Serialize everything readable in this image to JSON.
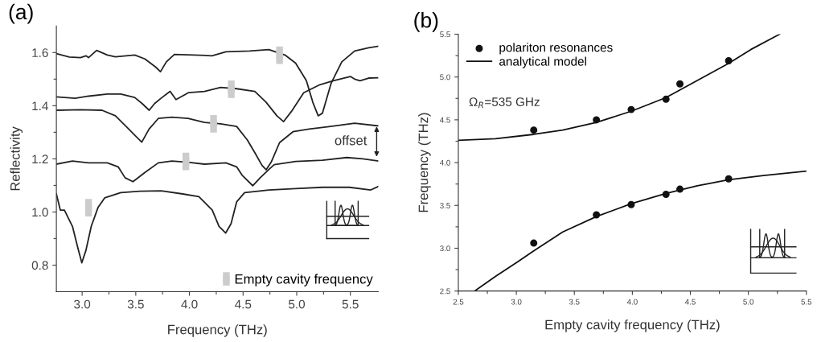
{
  "chart_data": [
    {
      "type": "line",
      "title": "(a)",
      "xlabel": "Frequency (THz)",
      "ylabel": "Reflectivity",
      "xlim": [
        2.76,
        5.76
      ],
      "ylim": [
        0.7,
        1.7
      ],
      "xticks": [
        {
          "value": 3.0,
          "label": "3.0"
        },
        {
          "value": 3.25,
          "label": null
        },
        {
          "value": 3.5,
          "label": "3.5"
        },
        {
          "value": 3.75,
          "label": null
        },
        {
          "value": 4.0,
          "label": "4.0"
        },
        {
          "value": 4.25,
          "label": null
        },
        {
          "value": 4.5,
          "label": "4.5"
        },
        {
          "value": 4.75,
          "label": null
        },
        {
          "value": 5.0,
          "label": "5.0"
        },
        {
          "value": 5.25,
          "label": null
        },
        {
          "value": 5.5,
          "label": "5.5"
        }
      ],
      "yticks": [
        {
          "value": 0.8,
          "label": "0.8"
        },
        {
          "value": 0.9,
          "label": null
        },
        {
          "value": 1.0,
          "label": "1.0"
        },
        {
          "value": 1.1,
          "label": null
        },
        {
          "value": 1.2,
          "label": "1.2"
        },
        {
          "value": 1.3,
          "label": null
        },
        {
          "value": 1.4,
          "label": "1.4"
        },
        {
          "value": 1.5,
          "label": null
        },
        {
          "value": 1.6,
          "label": "1.6"
        }
      ],
      "grid": false,
      "legend": "bottom right",
      "line_style": "solid",
      "annotations": [
        "offset"
      ],
      "series": [
        {
          "color": "#222222",
          "x": [
            2.76,
            2.88,
            2.985,
            3.035,
            3.06,
            3.135,
            3.235,
            3.31,
            3.49,
            3.585,
            3.687,
            3.73,
            3.785,
            3.86,
            4.04,
            4.21,
            4.34,
            4.56,
            4.74,
            4.89,
            4.99,
            5.09,
            5.15,
            5.2,
            5.24,
            5.32,
            5.42,
            5.54,
            5.67,
            5.76
          ],
          "values": [
            1.596,
            1.583,
            1.581,
            1.588,
            1.581,
            1.608,
            1.591,
            1.584,
            1.591,
            1.576,
            1.545,
            1.528,
            1.565,
            1.593,
            1.591,
            1.588,
            1.603,
            1.606,
            1.611,
            1.591,
            1.56,
            1.494,
            1.413,
            1.362,
            1.372,
            1.484,
            1.565,
            1.606,
            1.618,
            1.624
          ]
        },
        {
          "color": "#222222",
          "x": [
            2.76,
            2.935,
            3.06,
            3.235,
            3.36,
            3.49,
            3.56,
            3.625,
            3.675,
            3.735,
            3.82,
            3.875,
            3.99,
            4.14,
            4.29,
            4.44,
            4.61,
            4.715,
            4.815,
            4.877,
            4.95,
            5.065,
            5.215,
            5.34,
            5.5,
            5.54,
            5.59,
            5.67,
            5.76
          ],
          "values": [
            1.433,
            1.428,
            1.436,
            1.444,
            1.444,
            1.431,
            1.408,
            1.383,
            1.408,
            1.428,
            1.454,
            1.423,
            1.449,
            1.454,
            1.469,
            1.464,
            1.454,
            1.413,
            1.362,
            1.34,
            1.378,
            1.449,
            1.479,
            1.494,
            1.51,
            1.5,
            1.494,
            1.504,
            1.505
          ]
        },
        {
          "color": "#222222",
          "x": [
            2.76,
            2.985,
            3.185,
            3.31,
            3.41,
            3.51,
            3.556,
            3.624,
            3.71,
            3.837,
            3.987,
            4.14,
            4.29,
            4.44,
            4.54,
            4.614,
            4.677,
            4.715,
            4.765,
            4.84,
            4.965,
            5.115,
            5.315,
            5.54,
            5.76
          ],
          "values": [
            1.383,
            1.385,
            1.383,
            1.362,
            1.322,
            1.281,
            1.263,
            1.312,
            1.352,
            1.357,
            1.352,
            1.337,
            1.332,
            1.322,
            1.271,
            1.22,
            1.175,
            1.159,
            1.19,
            1.261,
            1.302,
            1.312,
            1.322,
            1.334,
            1.324
          ]
        },
        {
          "color": "#222222",
          "x": [
            2.76,
            2.91,
            3.06,
            3.235,
            3.336,
            3.4,
            3.474,
            3.586,
            3.71,
            3.837,
            3.987,
            4.14,
            4.34,
            4.44,
            4.49,
            4.59,
            4.66,
            4.74,
            4.79,
            4.99,
            5.24,
            5.466,
            5.616,
            5.76
          ],
          "values": [
            1.18,
            1.192,
            1.185,
            1.185,
            1.17,
            1.129,
            1.114,
            1.149,
            1.185,
            1.192,
            1.187,
            1.18,
            1.185,
            1.17,
            1.139,
            1.099,
            1.129,
            1.16,
            1.178,
            1.19,
            1.195,
            1.205,
            1.2,
            1.192
          ]
        },
        {
          "color": "#222222",
          "x": [
            2.76,
            2.797,
            2.835,
            2.91,
            2.96,
            2.997,
            3.035,
            3.085,
            3.148,
            3.21,
            3.36,
            3.536,
            3.737,
            3.937,
            4.088,
            4.213,
            4.276,
            4.338,
            4.388,
            4.44,
            4.514,
            4.74,
            4.99,
            5.24,
            5.49,
            5.69,
            5.76
          ],
          "values": [
            1.068,
            1.007,
            1.007,
            0.946,
            0.865,
            0.809,
            0.855,
            0.946,
            1.017,
            1.053,
            1.073,
            1.078,
            1.08,
            1.068,
            1.058,
            1.007,
            0.946,
            0.921,
            0.956,
            1.038,
            1.073,
            1.083,
            1.088,
            1.093,
            1.093,
            1.083,
            1.096
          ]
        },
        {
          "type": "scatter",
          "name": "Empty cavity frequency",
          "color": "#cccccc",
          "marker": "square",
          "x": [
            4.84,
            4.39,
            4.225,
            3.967,
            3.06
          ],
          "values": [
            1.59,
            1.462,
            1.332,
            1.19,
            1.016
          ],
          "errors": [
            0.033,
            0.033,
            0.033,
            0.033,
            0.033
          ]
        }
      ]
    },
    {
      "type": "scatter",
      "title": "(b)",
      "xlabel": "Empty cavity frequency (THz)",
      "ylabel": "Frequency (THz)",
      "xlim": [
        2.5,
        5.5
      ],
      "ylim": [
        2.5,
        5.5
      ],
      "xticks": [
        {
          "value": 2.5,
          "label": "2.5"
        },
        {
          "value": 2.75,
          "label": null
        },
        {
          "value": 3.0,
          "label": "3.0"
        },
        {
          "value": 3.25,
          "label": null
        },
        {
          "value": 3.5,
          "label": "3.5"
        },
        {
          "value": 3.75,
          "label": null
        },
        {
          "value": 4.0,
          "label": "4.0"
        },
        {
          "value": 4.25,
          "label": null
        },
        {
          "value": 4.5,
          "label": "4.5"
        },
        {
          "value": 4.75,
          "label": null
        },
        {
          "value": 5.0,
          "label": "5.0"
        },
        {
          "value": 5.25,
          "label": null
        },
        {
          "value": 5.5,
          "label": "5.5"
        }
      ],
      "yticks": [
        {
          "value": 2.5,
          "label": "2.5"
        },
        {
          "value": 2.75,
          "label": null
        },
        {
          "value": 3.0,
          "label": "3.0"
        },
        {
          "value": 3.25,
          "label": null
        },
        {
          "value": 3.5,
          "label": "3.5"
        },
        {
          "value": 3.75,
          "label": null
        },
        {
          "value": 4.0,
          "label": "4.0"
        },
        {
          "value": 4.25,
          "label": null
        },
        {
          "value": 4.5,
          "label": "4.5"
        },
        {
          "value": 4.75,
          "label": null
        },
        {
          "value": 5.0,
          "label": "5.0"
        },
        {
          "value": 5.25,
          "label": null
        },
        {
          "value": 5.5,
          "label": "5.5"
        }
      ],
      "grid": false,
      "legend": "top left",
      "marker": "circle",
      "line_style": "solid",
      "annotations": [
        "Ω$_{R}$=535 GHz"
      ],
      "series": [
        {
          "name": "polariton resonances",
          "color": "#111111",
          "x": [
            3.15,
            3.69,
            3.99,
            4.29,
            4.41,
            4.83,
            3.15,
            3.69,
            3.99,
            4.29,
            4.41,
            4.83
          ],
          "values": [
            4.38,
            4.5,
            4.62,
            4.74,
            4.92,
            5.19,
            3.06,
            3.39,
            3.51,
            3.63,
            3.69,
            3.81
          ]
        },
        {
          "type": "line",
          "name": "analytical model",
          "color": "#111111",
          "marker": "none",
          "x": [
            2.5,
            2.82,
            3.15,
            3.4,
            3.69,
            3.99,
            4.29,
            4.56,
            4.83,
            5.02,
            5.27
          ],
          "values": [
            4.26,
            4.28,
            4.33,
            4.38,
            4.47,
            4.6,
            4.76,
            4.96,
            5.16,
            5.32,
            5.5
          ]
        },
        {
          "type": "line",
          "color": "#111111",
          "marker": "none",
          "x": [
            2.64,
            2.82,
            3.01,
            3.15,
            3.4,
            3.69,
            3.99,
            4.29,
            4.56,
            4.83,
            5.13,
            5.5
          ],
          "values": [
            2.5,
            2.67,
            2.84,
            2.97,
            3.19,
            3.37,
            3.52,
            3.64,
            3.73,
            3.8,
            3.85,
            3.9
          ]
        }
      ]
    }
  ]
}
